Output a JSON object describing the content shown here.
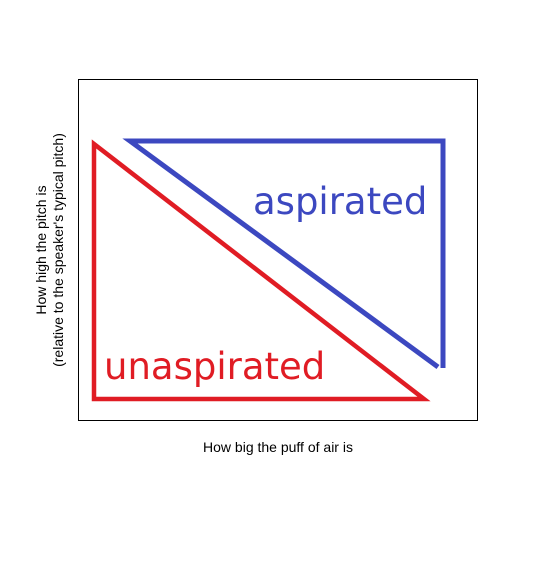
{
  "diagram": {
    "x_axis_label": "How big the puff of air is",
    "y_axis_label_line1": "How high the pitch is",
    "y_axis_label_line2": "(relative to the speaker's typical pitch)",
    "regions": {
      "aspirated": {
        "label": "aspirated",
        "color": "#3c48c0"
      },
      "unaspirated": {
        "label": "unaspirated",
        "color": "#e01c24"
      }
    }
  }
}
